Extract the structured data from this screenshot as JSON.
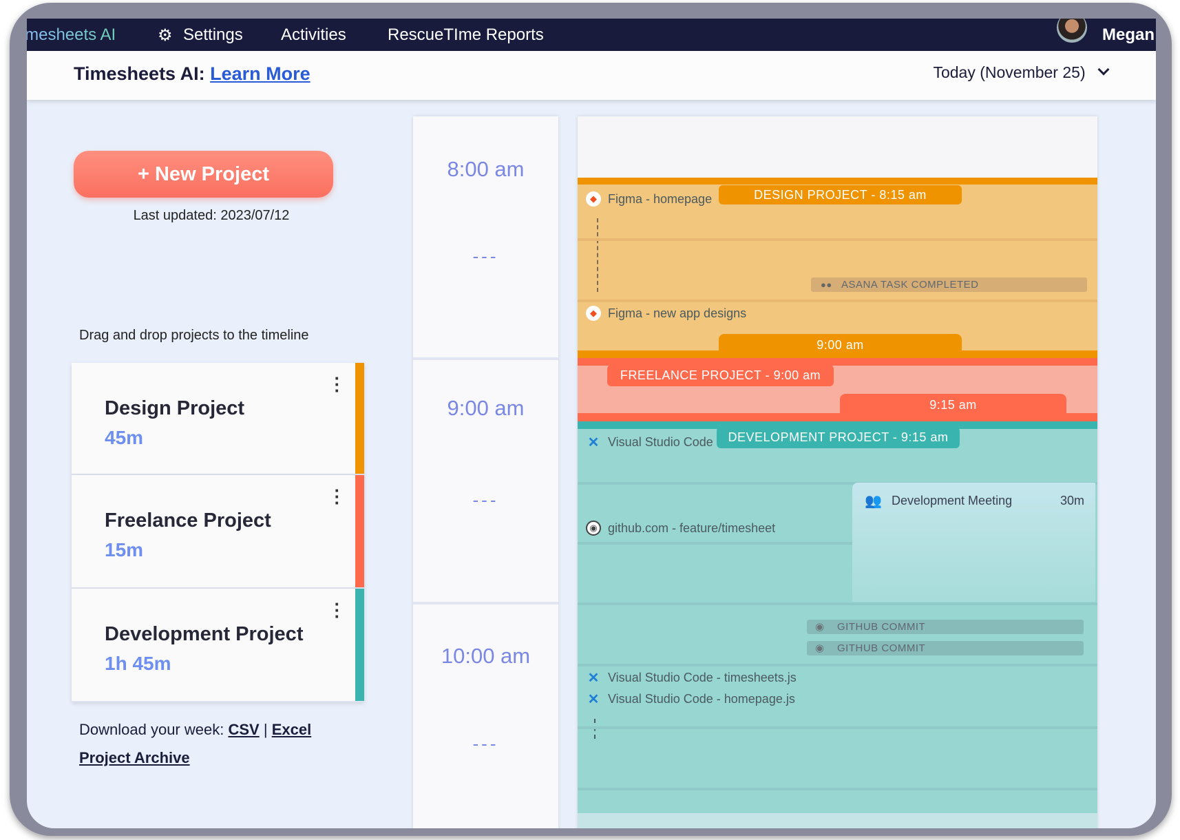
{
  "nav": {
    "brand": "Timesheets AI",
    "settings": "Settings",
    "activities": "Activities",
    "reports": "RescueTIme Reports",
    "user": "Megan"
  },
  "subheader": {
    "title": "Timesheets AI:",
    "link": "Learn More",
    "date": "Today (November 25)"
  },
  "left": {
    "new_project": "+ New Project",
    "last_updated": "Last updated: 2023/07/12",
    "drag_hint": "Drag and drop projects to the timeline",
    "projects": [
      {
        "name": "Design Project",
        "duration": "45m",
        "color": "#f09300"
      },
      {
        "name": "Freelance Project",
        "duration": "15m",
        "color": "#ff6a4d"
      },
      {
        "name": "Development Project",
        "duration": "1h 45m",
        "color": "#3ab4ae"
      }
    ],
    "download_label": "Download your week:",
    "csv": "CSV",
    "sep": "|",
    "excel": "Excel",
    "archive": "Project Archive"
  },
  "times": {
    "t8": "8:00 am",
    "t9": "9:00 am",
    "t10": "10:00 am",
    "dash": "---"
  },
  "timeline": {
    "design": {
      "label": "DESIGN PROJECT - 8:15 am",
      "end": "9:00 am",
      "a1": "Figma - homepage",
      "a2": "Figma - new app designs",
      "event": "ASANA TASK COMPLETED"
    },
    "freelance": {
      "label": "FREELANCE PROJECT - 9:00 am",
      "end": "9:15 am"
    },
    "development": {
      "label": "DEVELOPMENT PROJECT - 9:15 am",
      "a1": "Visual Studio Code",
      "a2": "github.com - feature/timesheet",
      "a3": "Visual Studio Code - timesheets.js",
      "a4": "Visual Studio Code - homepage.js",
      "event1": "GITHUB COMMIT",
      "event2": "GITHUB COMMIT",
      "meeting": "Development Meeting",
      "meeting_duration": "30m"
    }
  },
  "colors": {
    "nav": "#191b3d",
    "design": "#f09300",
    "design_bg": "#f3c67d",
    "freelance": "#ff6a4d",
    "freelance_bg": "#f9afa0",
    "development": "#3ab4ae",
    "development_bg": "#98d6d2",
    "accent": "#7a88e3"
  }
}
